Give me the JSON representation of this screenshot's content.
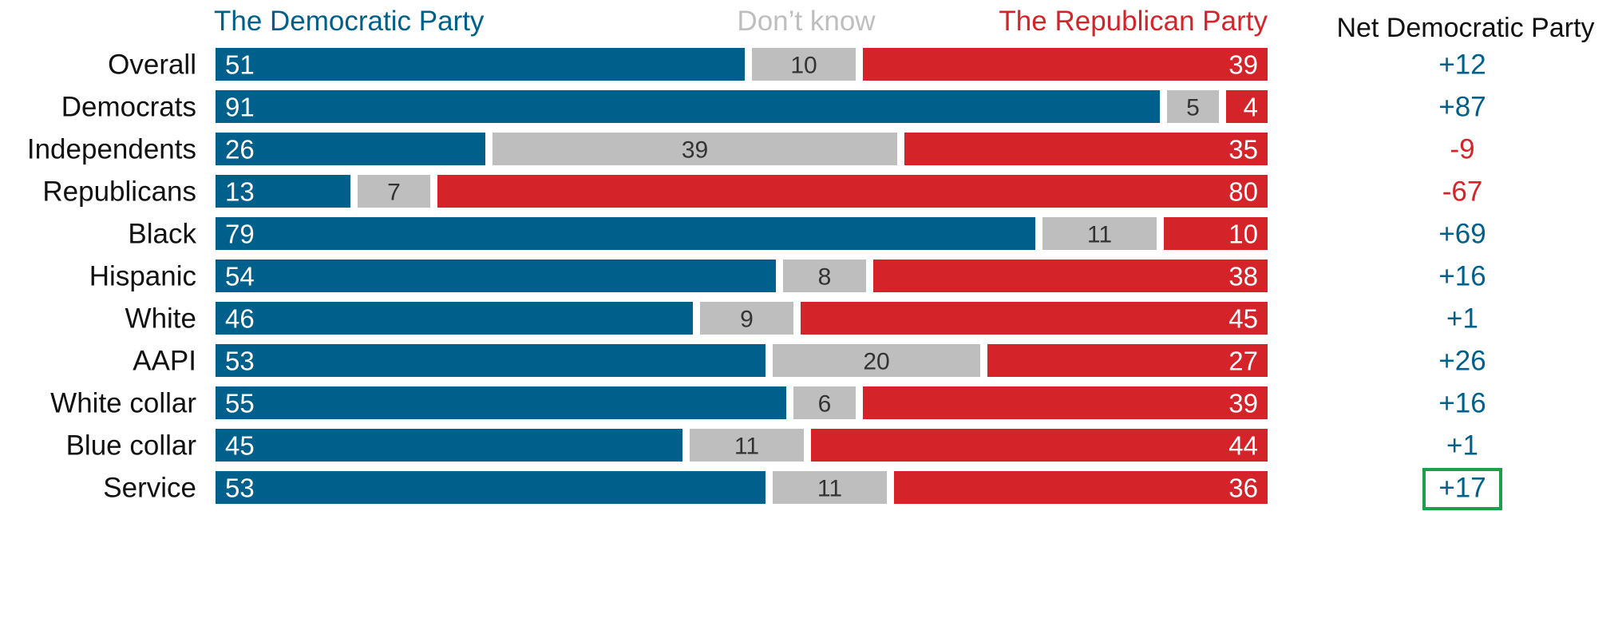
{
  "colors": {
    "democratic": "#00608c",
    "dont_know": "#bebebe",
    "republican": "#d4242a",
    "net_positive": "#00608c",
    "net_negative": "#d4242a",
    "highlight_box": "#1aa04a"
  },
  "chart_data": {
    "type": "bar",
    "orientation": "horizontal",
    "stacked": "100%",
    "legend": {
      "democratic": "The Democratic Party",
      "dont_know": "Don’t know",
      "republican": "The Republican Party"
    },
    "net_header": "Net Democratic Party",
    "groups": [
      [
        "Overall"
      ],
      [
        "Democrats",
        "Independents",
        "Republicans"
      ],
      [
        "Black",
        "Hispanic",
        "White",
        "AAPI"
      ],
      [
        "White collar",
        "Blue collar",
        "Service"
      ]
    ],
    "rows": [
      {
        "label": "Overall",
        "democratic": 51,
        "dont_know": 10,
        "republican": 39,
        "net": "+12",
        "net_sign": "positive"
      },
      {
        "label": "Democrats",
        "democratic": 91,
        "dont_know": 5,
        "republican": 4,
        "net": "+87",
        "net_sign": "positive"
      },
      {
        "label": "Independents",
        "democratic": 26,
        "dont_know": 39,
        "republican": 35,
        "net": "-9",
        "net_sign": "negative"
      },
      {
        "label": "Republicans",
        "democratic": 13,
        "dont_know": 7,
        "republican": 80,
        "net": "-67",
        "net_sign": "negative"
      },
      {
        "label": "Black",
        "democratic": 79,
        "dont_know": 11,
        "republican": 10,
        "net": "+69",
        "net_sign": "positive"
      },
      {
        "label": "Hispanic",
        "democratic": 54,
        "dont_know": 8,
        "republican": 38,
        "net": "+16",
        "net_sign": "positive"
      },
      {
        "label": "White",
        "democratic": 46,
        "dont_know": 9,
        "republican": 45,
        "net": "+1",
        "net_sign": "positive"
      },
      {
        "label": "AAPI",
        "democratic": 53,
        "dont_know": 20,
        "republican": 27,
        "net": "+26",
        "net_sign": "positive"
      },
      {
        "label": "White collar",
        "democratic": 55,
        "dont_know": 6,
        "republican": 39,
        "net": "+16",
        "net_sign": "positive"
      },
      {
        "label": "Blue collar",
        "democratic": 45,
        "dont_know": 11,
        "republican": 44,
        "net": "+1",
        "net_sign": "positive"
      },
      {
        "label": "Service",
        "democratic": 53,
        "dont_know": 11,
        "republican": 36,
        "net": "+17",
        "net_sign": "positive",
        "highlighted": true
      }
    ]
  }
}
